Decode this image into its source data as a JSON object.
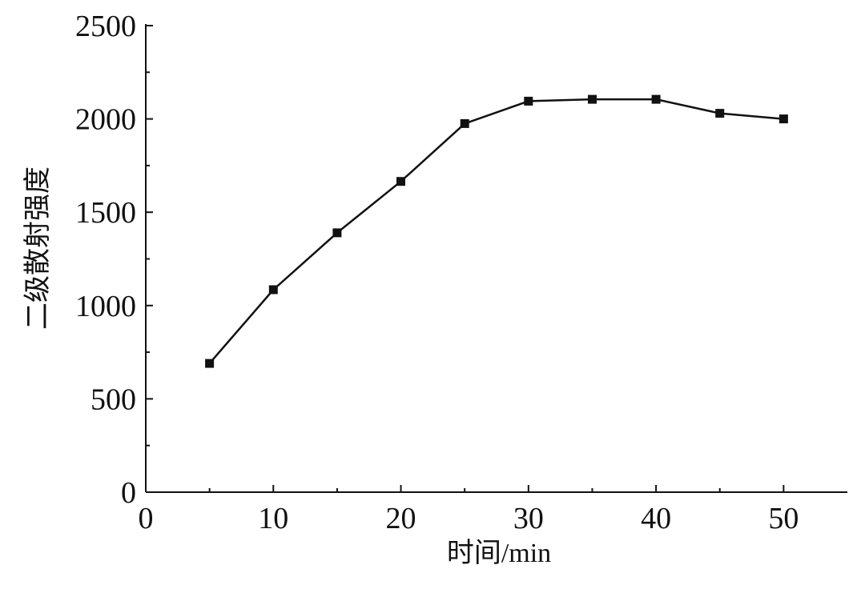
{
  "chart_data": {
    "type": "line",
    "title": "",
    "xlabel": "时间/min",
    "ylabel": "二级散射强度",
    "xlim": [
      0,
      55
    ],
    "ylim": [
      0,
      2500
    ],
    "xticks": [
      0,
      10,
      20,
      30,
      40,
      50
    ],
    "yticks": [
      0,
      500,
      1000,
      1500,
      2000,
      2500
    ],
    "grid": false,
    "legend": "none",
    "marker": "square",
    "line_color": "#111111",
    "series": [
      {
        "x": [
          5,
          10,
          15,
          20,
          25,
          30,
          35,
          40,
          45,
          50
        ],
        "values": [
          690,
          1085,
          1390,
          1665,
          1975,
          2095,
          2105,
          2105,
          2030,
          2000
        ]
      }
    ]
  }
}
